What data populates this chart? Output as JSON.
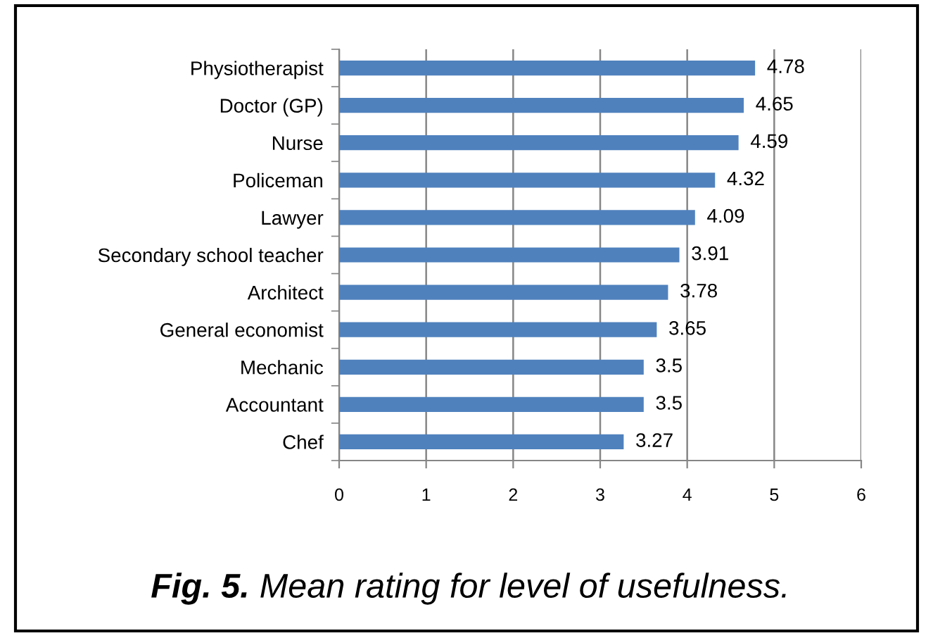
{
  "chart_data": {
    "type": "bar",
    "orientation": "horizontal",
    "categories": [
      "Physiotherapist",
      "Doctor (GP)",
      "Nurse",
      "Policeman",
      "Lawyer",
      "Secondary school teacher",
      "Architect",
      "General economist",
      "Mechanic",
      "Accountant",
      "Chef"
    ],
    "values": [
      4.78,
      4.65,
      4.59,
      4.32,
      4.09,
      3.91,
      3.78,
      3.65,
      3.5,
      3.5,
      3.27
    ],
    "color": "#4f81bd",
    "xlim": [
      0,
      6
    ],
    "xticks": [
      0,
      1,
      2,
      3,
      4,
      5,
      6
    ],
    "grid": "x",
    "data_labels": true,
    "annotations": [
      "Fig. 5.",
      "Mean rating for level of usefulness."
    ]
  }
}
